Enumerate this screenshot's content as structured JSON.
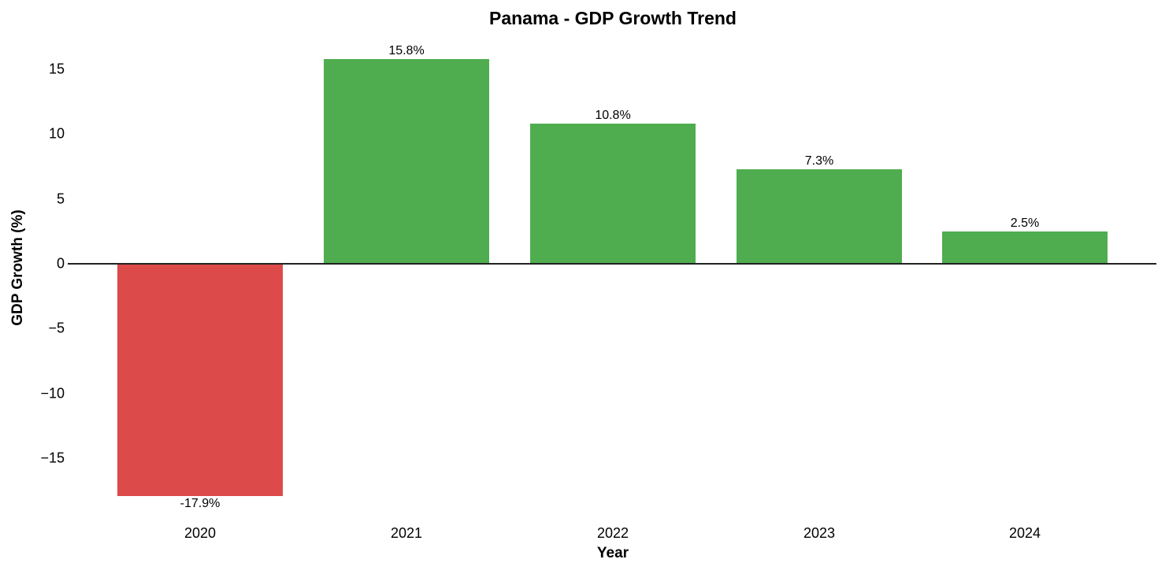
{
  "chart_data": {
    "type": "bar",
    "title": "Panama - GDP Growth Trend",
    "xlabel": "Year",
    "ylabel": "GDP Growth (%)",
    "categories": [
      "2020",
      "2021",
      "2022",
      "2023",
      "2024"
    ],
    "values": [
      -17.9,
      15.8,
      10.8,
      7.3,
      2.5
    ],
    "value_labels": [
      "-17.9%",
      "15.8%",
      "10.8%",
      "7.3%",
      "2.5%"
    ],
    "bar_colors": [
      "#dc4a4a",
      "#4fad50",
      "#4fad50",
      "#4fad50",
      "#4fad50"
    ],
    "ylim": [
      -18.5,
      17
    ],
    "yticks": [
      15,
      10,
      5,
      0,
      -5,
      -10,
      -15
    ],
    "ytick_labels": [
      "15",
      "10",
      "5",
      "0",
      "−5",
      "−10",
      "−15"
    ],
    "grid": false,
    "legend": null
  },
  "colors": {
    "positive": "#4fad50",
    "negative": "#dc4a4a",
    "zero_line": "#222222"
  }
}
